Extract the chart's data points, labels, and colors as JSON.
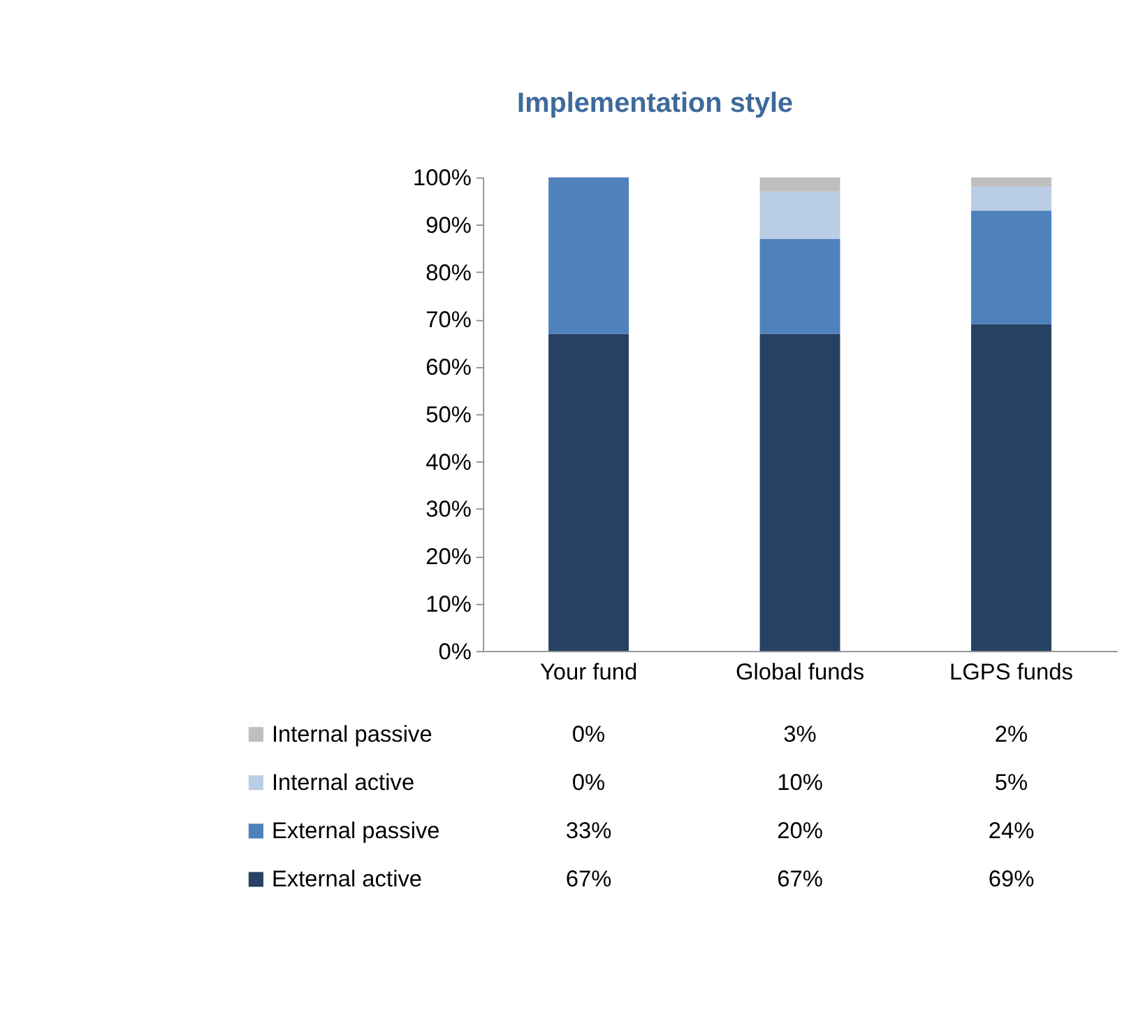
{
  "chart_data": {
    "type": "bar",
    "title": "Implementation style",
    "categories": [
      "Your fund",
      "Global funds",
      "LGPS funds"
    ],
    "stacked": true,
    "legend": "bottom",
    "grid": false,
    "ylim": [
      0,
      100
    ],
    "yticks": [
      {
        "value": 0,
        "label": "0%"
      },
      {
        "value": 10,
        "label": "10%"
      },
      {
        "value": 20,
        "label": "20%"
      },
      {
        "value": 30,
        "label": "30%"
      },
      {
        "value": 40,
        "label": "40%"
      },
      {
        "value": 50,
        "label": "50%"
      },
      {
        "value": 60,
        "label": "60%"
      },
      {
        "value": 70,
        "label": "70%"
      },
      {
        "value": 80,
        "label": "80%"
      },
      {
        "value": 90,
        "label": "90%"
      },
      {
        "value": 100,
        "label": "100%"
      }
    ],
    "series": [
      {
        "name": "External active",
        "color": "#264163",
        "values": [
          67,
          67,
          69
        ],
        "value_labels": [
          "67%",
          "67%",
          "69%"
        ]
      },
      {
        "name": "External passive",
        "color": "#4f81bd",
        "values": [
          33,
          20,
          24
        ],
        "value_labels": [
          "33%",
          "20%",
          "24%"
        ]
      },
      {
        "name": "Internal active",
        "color": "#b9cde5",
        "values": [
          0,
          10,
          5
        ],
        "value_labels": [
          "0%",
          "10%",
          "5%"
        ]
      },
      {
        "name": "Internal passive",
        "color": "#bfbfbf",
        "values": [
          0,
          3,
          2
        ],
        "value_labels": [
          "0%",
          "3%",
          "2%"
        ]
      }
    ]
  }
}
